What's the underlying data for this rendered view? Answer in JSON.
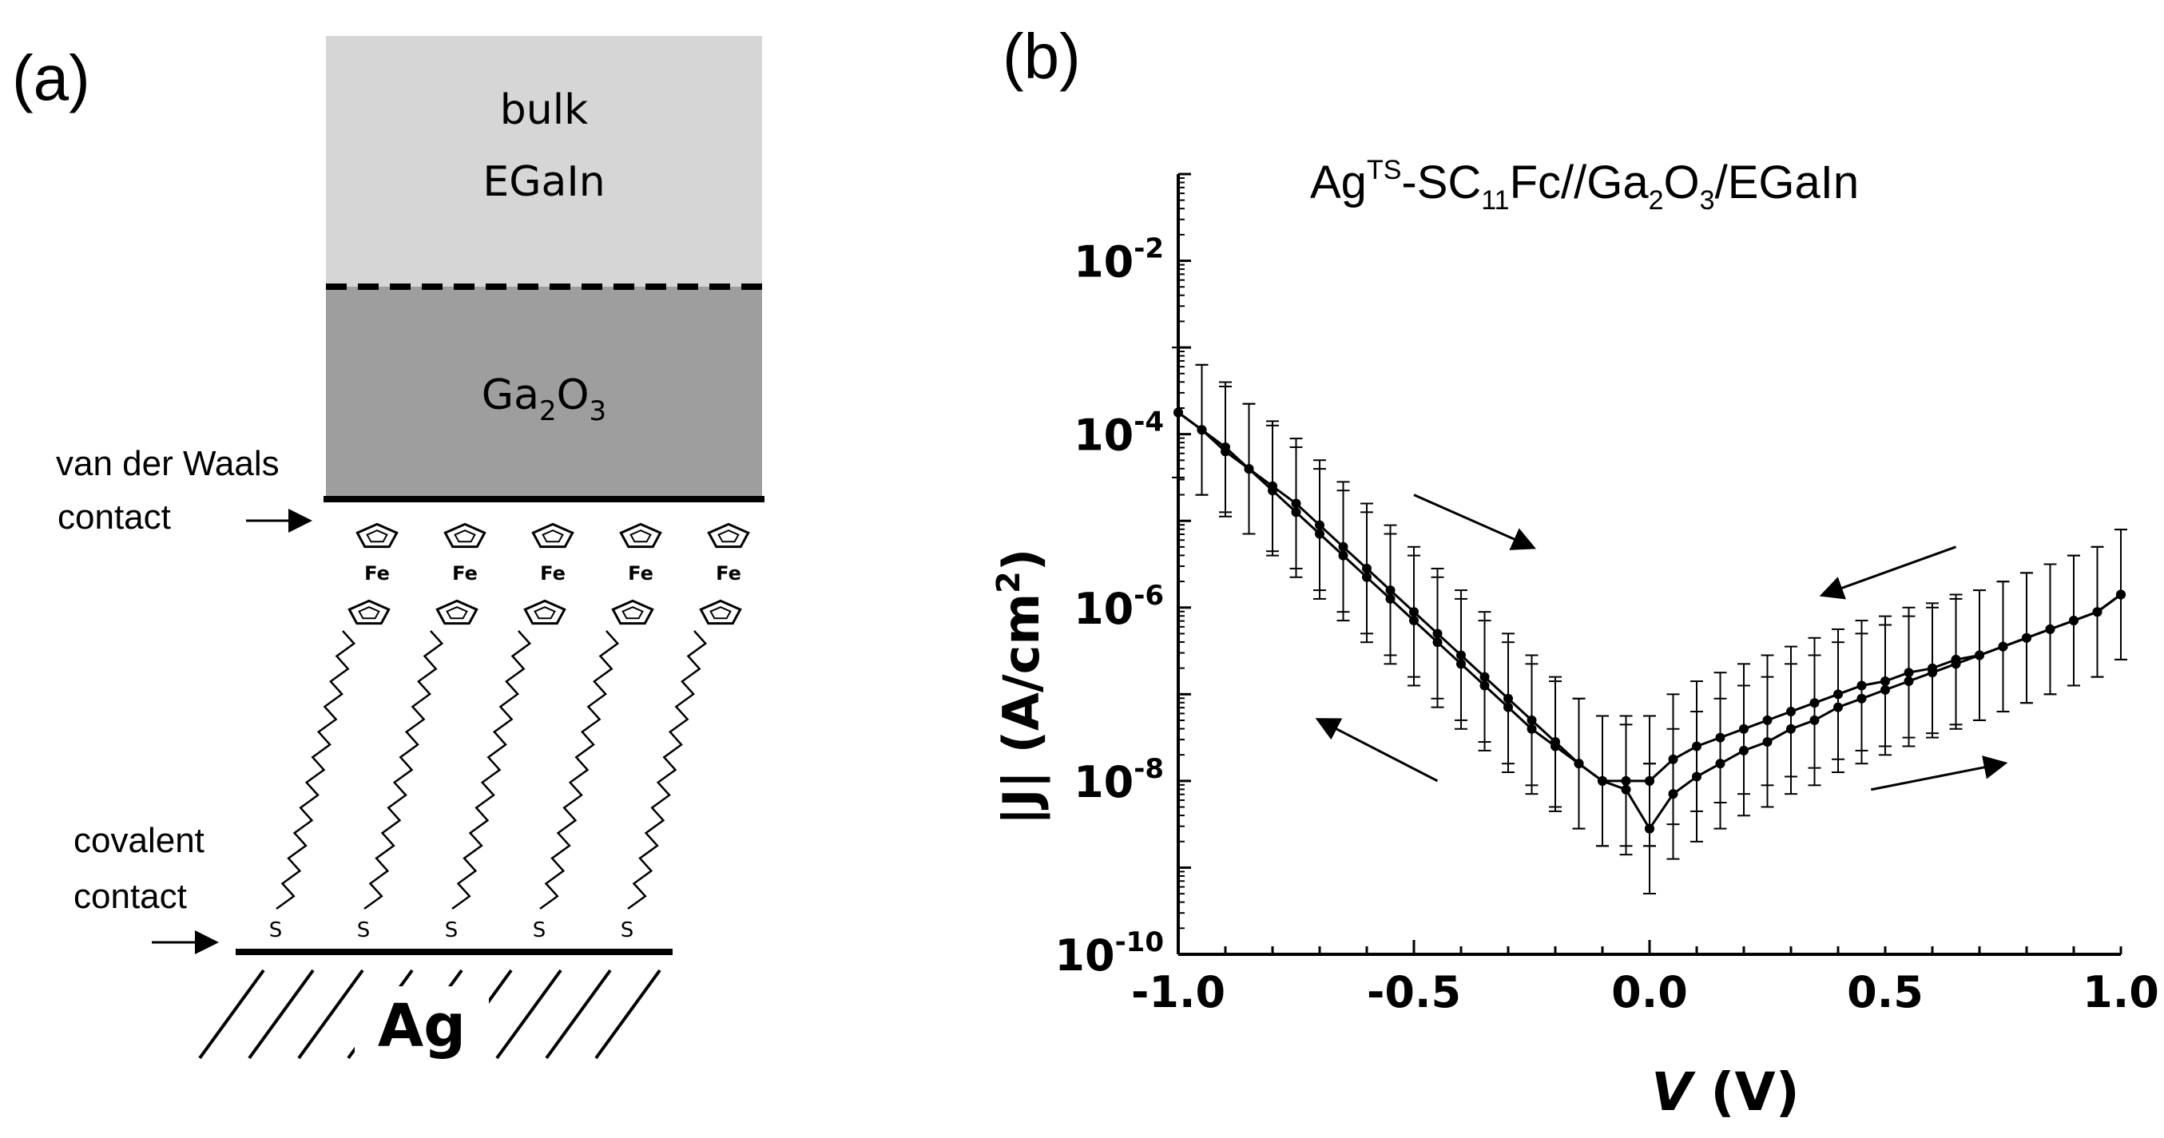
{
  "panel_a": {
    "label": "(a)",
    "bulk_line1": "bulk",
    "bulk_line2": "EGaIn",
    "oxide_base": "Ga",
    "oxide_sub1": "2",
    "oxide_mid": "O",
    "oxide_sub2": "3",
    "vdw_line1": "van der Waals",
    "vdw_line2": "contact",
    "cov_line1": "covalent",
    "cov_line2": "contact",
    "fe_label": "Fe",
    "s_label": "S",
    "substrate": "Ag",
    "colors": {
      "bulk": "#d6d6d6",
      "oxide": "#9e9e9e"
    }
  },
  "panel_b": {
    "label": "(b)",
    "title_parts": {
      "ag": "Ag",
      "ts": "TS",
      "sc": "-SC",
      "n": "11",
      "fc": "Fc//Ga",
      "s2": "2",
      "o": "O",
      "s3": "3",
      "end": "/EGaIn"
    },
    "ylabel_main": "|J| (A/cm",
    "ylabel_sup": "2",
    "ylabel_close": ")",
    "xlabel_var": "V",
    "xlabel_unit": " (V)"
  },
  "chart_data": {
    "type": "line",
    "title": "AgTS-SC11Fc//Ga2O3/EGaIn",
    "xlabel": "V (V)",
    "ylabel": "|J| (A/cm2)",
    "yscale": "log",
    "xlim": [
      -1.0,
      1.0
    ],
    "ylim_log10": [
      -10,
      -1
    ],
    "xticks": [
      {
        "v": -1.0,
        "label": "-1.0"
      },
      {
        "v": -0.5,
        "label": "-0.5"
      },
      {
        "v": 0.0,
        "label": "0.0"
      },
      {
        "v": 0.5,
        "label": "0.5"
      },
      {
        "v": 1.0,
        "label": "1.0"
      }
    ],
    "yticks": [
      {
        "exp": -10,
        "base": "10",
        "label": "-10"
      },
      {
        "exp": -8,
        "base": "10",
        "label": "-8"
      },
      {
        "exp": -6,
        "base": "10",
        "label": "-6"
      },
      {
        "exp": -4,
        "base": "10",
        "label": "-4"
      },
      {
        "exp": -2,
        "base": "10",
        "label": "-2"
      }
    ],
    "error_halfwidth_log10": 0.75,
    "series": [
      {
        "name": "sweep 0 V → -1 V (upper branch)",
        "x": [
          0.0,
          -0.05,
          -0.1,
          -0.15,
          -0.2,
          -0.25,
          -0.3,
          -0.35,
          -0.4,
          -0.45,
          -0.5,
          -0.55,
          -0.6,
          -0.65,
          -0.7,
          -0.75,
          -0.8,
          -0.85,
          -0.9,
          -0.95,
          -1.0
        ],
        "log10_J": [
          -8.0,
          -8.0,
          -8.0,
          -7.8,
          -7.55,
          -7.3,
          -7.05,
          -6.8,
          -6.55,
          -6.3,
          -6.05,
          -5.8,
          -5.55,
          -5.3,
          -5.05,
          -4.8,
          -4.6,
          -4.4,
          -4.2,
          -3.95,
          -3.75
        ]
      },
      {
        "name": "sweep -1 V → 0 V (lower branch)",
        "x": [
          -1.0,
          -0.95,
          -0.9,
          -0.85,
          -0.8,
          -0.75,
          -0.7,
          -0.65,
          -0.6,
          -0.55,
          -0.5,
          -0.45,
          -0.4,
          -0.35,
          -0.3,
          -0.25,
          -0.2,
          -0.15,
          -0.1,
          -0.05,
          0.0
        ],
        "log10_J": [
          -3.75,
          -3.95,
          -4.15,
          -4.4,
          -4.65,
          -4.9,
          -5.15,
          -5.4,
          -5.65,
          -5.9,
          -6.15,
          -6.4,
          -6.65,
          -6.9,
          -7.15,
          -7.4,
          -7.6,
          -7.8,
          -8.0,
          -8.1,
          -8.55
        ]
      },
      {
        "name": "sweep 0 V → +1 V (lower branch)",
        "x": [
          0.0,
          0.05,
          0.1,
          0.15,
          0.2,
          0.25,
          0.3,
          0.35,
          0.4,
          0.45,
          0.5,
          0.55,
          0.6,
          0.65,
          0.7,
          0.75,
          0.8,
          0.85,
          0.9,
          0.95,
          1.0
        ],
        "log10_J": [
          -8.55,
          -8.15,
          -7.95,
          -7.8,
          -7.65,
          -7.55,
          -7.4,
          -7.3,
          -7.15,
          -7.05,
          -6.95,
          -6.85,
          -6.75,
          -6.65,
          -6.55,
          -6.45,
          -6.35,
          -6.25,
          -6.15,
          -6.05,
          -5.85
        ]
      },
      {
        "name": "sweep +1 V → 0 V (upper branch)",
        "x": [
          1.0,
          0.95,
          0.9,
          0.85,
          0.8,
          0.75,
          0.7,
          0.65,
          0.6,
          0.55,
          0.5,
          0.45,
          0.4,
          0.35,
          0.3,
          0.25,
          0.2,
          0.15,
          0.1,
          0.05,
          0.0
        ],
        "log10_J": [
          -5.85,
          -6.05,
          -6.15,
          -6.25,
          -6.35,
          -6.45,
          -6.55,
          -6.6,
          -6.7,
          -6.75,
          -6.85,
          -6.9,
          -7.0,
          -7.1,
          -7.2,
          -7.3,
          -7.4,
          -7.5,
          -7.6,
          -7.75,
          -8.0
        ]
      }
    ],
    "annotations": [
      {
        "type": "arrow",
        "from": [
          -0.5,
          -4.7
        ],
        "to": [
          -0.25,
          -5.3
        ],
        "meaning": "sweep direction"
      },
      {
        "type": "arrow",
        "from": [
          -0.45,
          -8.0
        ],
        "to": [
          -0.7,
          -7.3
        ],
        "meaning": "sweep direction"
      },
      {
        "type": "arrow",
        "from": [
          0.65,
          -5.3
        ],
        "to": [
          0.37,
          -5.85
        ],
        "meaning": "sweep direction"
      },
      {
        "type": "arrow",
        "from": [
          0.47,
          -8.1
        ],
        "to": [
          0.75,
          -7.8
        ],
        "meaning": "sweep direction"
      }
    ]
  }
}
